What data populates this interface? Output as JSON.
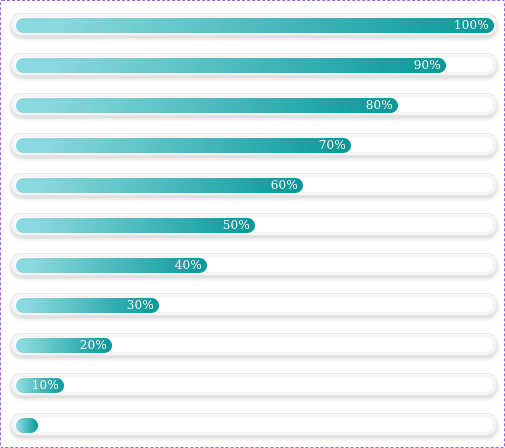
{
  "colors": {
    "fill_dark": "#07989a",
    "fill_light": "#8ad9de",
    "frame_border": "#9a66dd",
    "track": "#f3f3f3"
  },
  "bars": [
    {
      "value": 100,
      "label": "100%"
    },
    {
      "value": 90,
      "label": "90%"
    },
    {
      "value": 80,
      "label": "80%"
    },
    {
      "value": 70,
      "label": "70%"
    },
    {
      "value": 60,
      "label": "60%"
    },
    {
      "value": 50,
      "label": "50%"
    },
    {
      "value": 40,
      "label": "40%"
    },
    {
      "value": 30,
      "label": "30%"
    },
    {
      "value": 20,
      "label": "20%"
    },
    {
      "value": 10,
      "label": "10%"
    },
    {
      "value": 0,
      "label": ""
    }
  ]
}
